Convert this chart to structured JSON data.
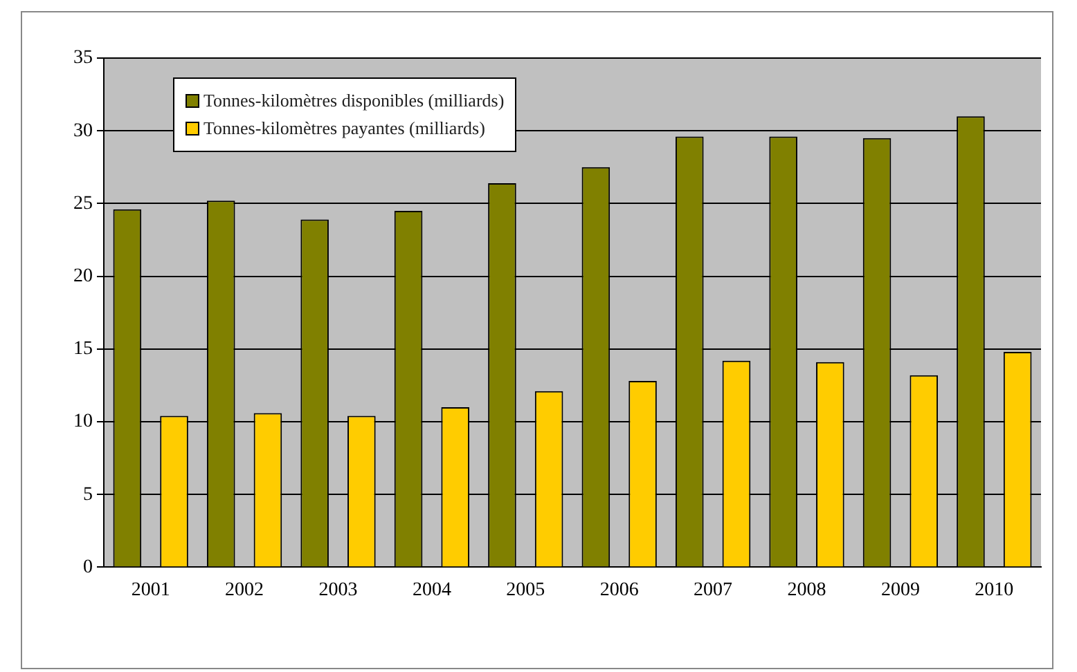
{
  "chart_data": {
    "type": "bar",
    "categories": [
      "2001",
      "2002",
      "2003",
      "2004",
      "2005",
      "2006",
      "2007",
      "2008",
      "2009",
      "2010"
    ],
    "series": [
      {
        "name": "Tonnes-kilomètres disponibles (milliards)",
        "color": "#808000",
        "values": [
          24.6,
          25.2,
          23.9,
          24.5,
          26.4,
          27.5,
          29.6,
          29.6,
          29.5,
          31.0
        ]
      },
      {
        "name": "Tonnes-kilomètres payantes (milliards)",
        "color": "#ffcc00",
        "values": [
          10.4,
          10.6,
          10.4,
          11.0,
          12.1,
          12.8,
          14.2,
          14.1,
          13.2,
          14.8
        ]
      }
    ],
    "ylim": [
      0,
      35
    ],
    "yticks": [
      0,
      5,
      10,
      15,
      20,
      25,
      30,
      35
    ],
    "grid": "y",
    "legend": "top left"
  }
}
